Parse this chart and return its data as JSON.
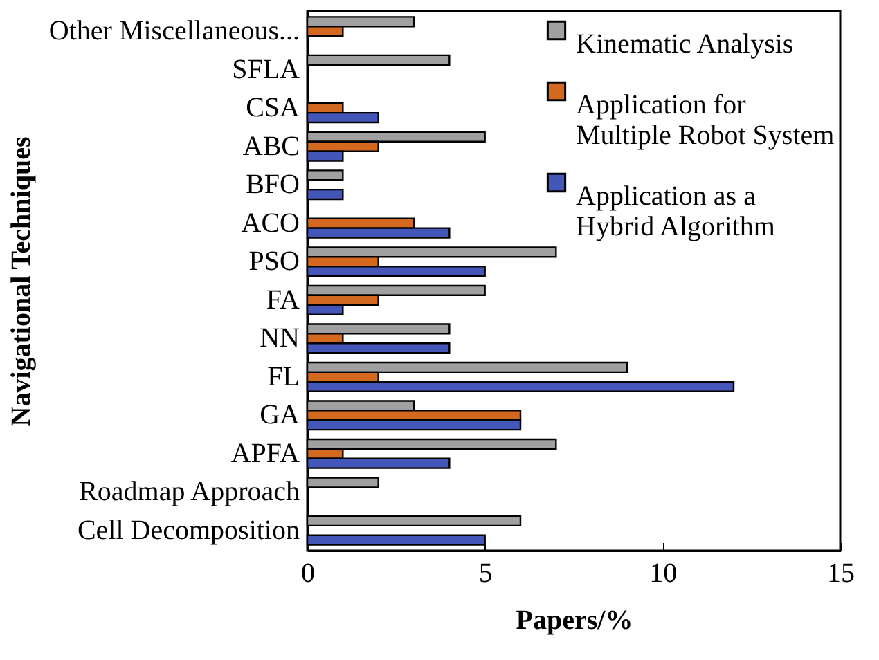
{
  "chart_data": {
    "type": "bar",
    "orientation": "horizontal",
    "ylabel": "Navigational Techniques",
    "xlabel": "Papers/%",
    "categories": [
      "Other Miscellaneous...",
      "SFLA",
      "CSA",
      "ABC",
      "BFO",
      "ACO",
      "PSO",
      "FA",
      "NN",
      "FL",
      "GA",
      "APFA",
      "Roadmap Approach",
      "Cell Decomposition"
    ],
    "series": [
      {
        "name": "Kinematic Analysis",
        "color": "#a0a0a0",
        "values": [
          3,
          4,
          null,
          5,
          1,
          null,
          7,
          5,
          4,
          9,
          3,
          7,
          2,
          6
        ]
      },
      {
        "name": "Application for Multiple Robot System",
        "color": "#d2691e",
        "values": [
          1,
          null,
          1,
          2,
          null,
          3,
          2,
          2,
          1,
          2,
          6,
          1,
          null,
          null
        ]
      },
      {
        "name": "Application as a Hybrid Algorithm",
        "color": "#4456b8",
        "values": [
          null,
          null,
          2,
          1,
          1,
          4,
          5,
          1,
          4,
          12,
          6,
          4,
          null,
          5
        ]
      }
    ],
    "xlim": [
      0,
      15
    ],
    "xticks": [
      0,
      5,
      10,
      15
    ],
    "grid": false,
    "legend": "top right"
  }
}
